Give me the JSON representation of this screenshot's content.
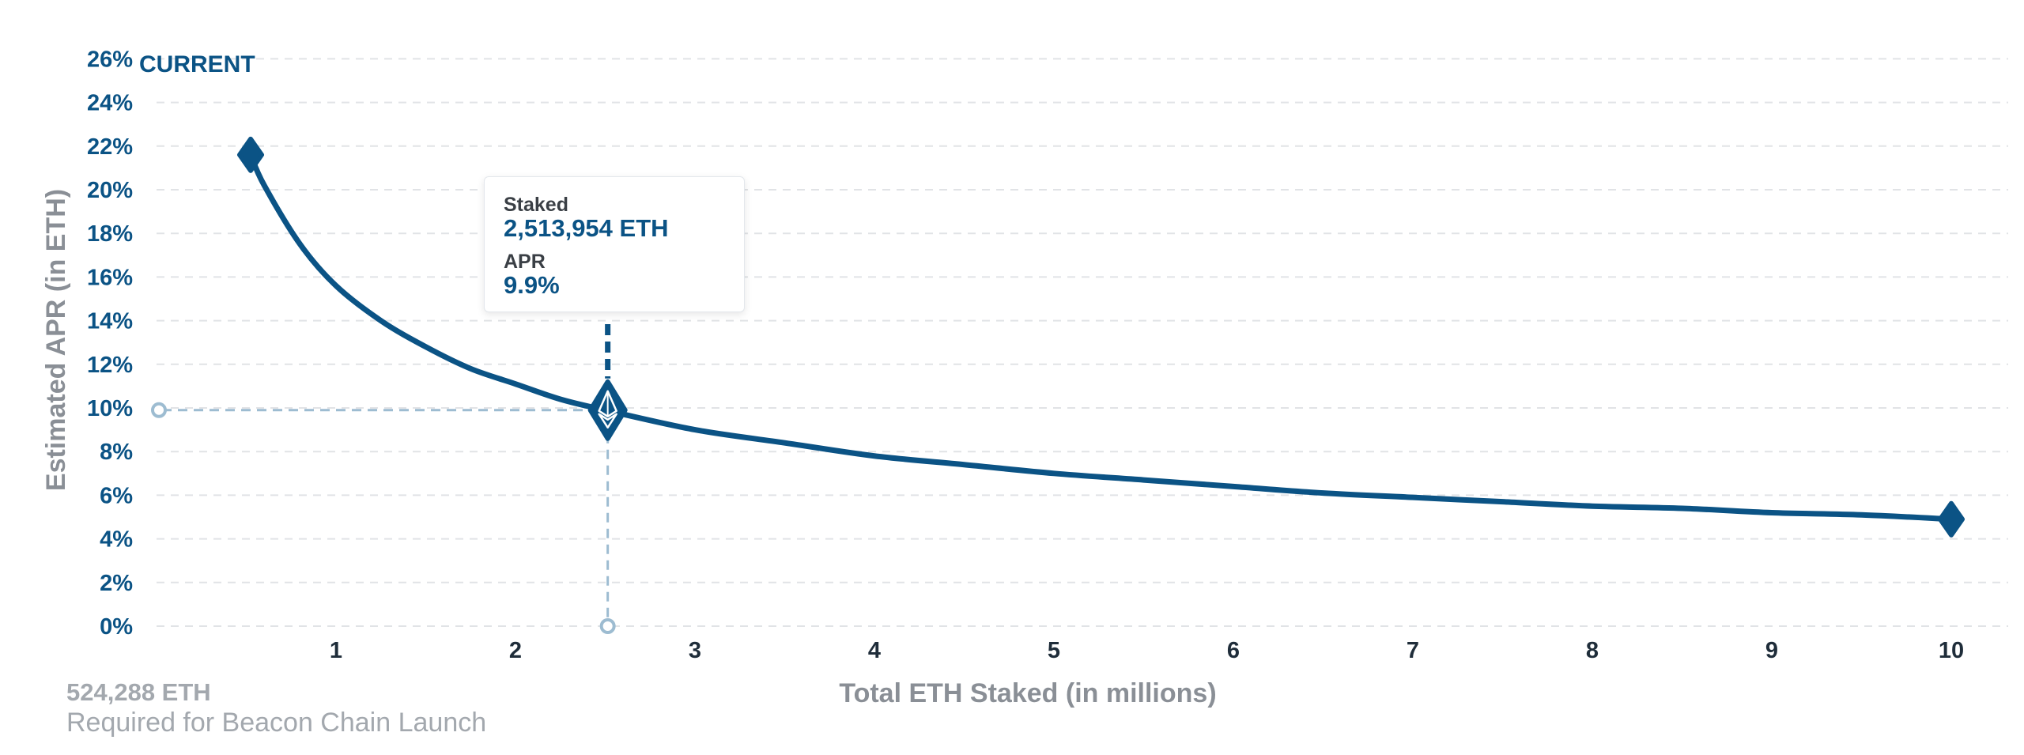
{
  "chart_data": {
    "type": "line",
    "xlabel": "Total ETH Staked  (in millions)",
    "ylabel": "Estimated APR (in ETH)",
    "xlim": [
      0,
      10
    ],
    "ylim": [
      0,
      26
    ],
    "x_ticks": [
      1,
      2,
      3,
      4,
      5,
      6,
      7,
      8,
      9,
      10
    ],
    "x_tick_labels": [
      "1",
      "2",
      "3",
      "4",
      "5",
      "6",
      "7",
      "8",
      "9",
      "10"
    ],
    "y_ticks": [
      0,
      2,
      4,
      6,
      8,
      10,
      12,
      14,
      16,
      18,
      20,
      22,
      24,
      26
    ],
    "y_tick_labels": [
      "0%",
      "2%",
      "4%",
      "6%",
      "8%",
      "10%",
      "12%",
      "14%",
      "16%",
      "18%",
      "20%",
      "22%",
      "24%",
      "26%"
    ],
    "grid": "horizontal dashed",
    "series": [
      {
        "x": [
          0.524288,
          0.6,
          0.8,
          1.0,
          1.25,
          1.5,
          1.75,
          2.0,
          2.25,
          2.5,
          3.0,
          3.5,
          4.0,
          4.5,
          5.0,
          5.5,
          6.0,
          6.5,
          7.0,
          7.5,
          8.0,
          8.5,
          9.0,
          9.5,
          10.0
        ],
        "y": [
          21.6,
          20.2,
          17.5,
          15.6,
          14.0,
          12.8,
          11.8,
          11.1,
          10.4,
          9.9,
          9.0,
          8.4,
          7.8,
          7.4,
          7.0,
          6.7,
          6.4,
          6.1,
          5.9,
          5.7,
          5.5,
          5.4,
          5.2,
          5.1,
          4.9
        ]
      }
    ],
    "current": {
      "label": "CURRENT",
      "staked_millions": 2.513954,
      "apr": 9.9
    },
    "color": "#0b5385",
    "guide_color": "#9dbcd1"
  },
  "tooltip": {
    "staked_label": "Staked",
    "staked_value": "2,513,954 ETH",
    "apr_label": "APR",
    "apr_value": "9.9%"
  },
  "min_note": {
    "eth": "524,288 ETH",
    "description": "Required for Beacon Chain Launch"
  }
}
